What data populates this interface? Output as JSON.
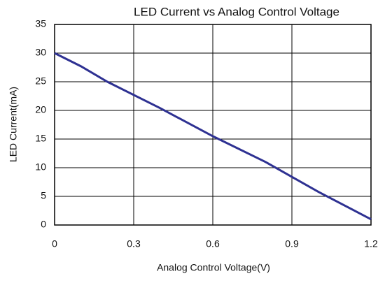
{
  "chart_data": {
    "type": "line",
    "title": "LED Current vs Analog  Control Voltage",
    "x_label": "Analog Control Voltage(V)",
    "y_label": "LED Current(mA)",
    "x": [
      0,
      0.1,
      0.2,
      0.4,
      0.6,
      0.8,
      1.0,
      1.2
    ],
    "series": [
      {
        "name": "LED Current",
        "color": "#2e3192",
        "values": [
          30,
          27.7,
          25,
          20.4,
          15.5,
          11,
          5.8,
          1
        ]
      }
    ],
    "xlim": [
      0,
      1.2
    ],
    "xticks": [
      0,
      0.3,
      0.6,
      0.9,
      1.2
    ],
    "ylim": [
      0,
      35
    ],
    "yticks": [
      0,
      5,
      10,
      15,
      20,
      25,
      30,
      35
    ],
    "grid": true
  }
}
